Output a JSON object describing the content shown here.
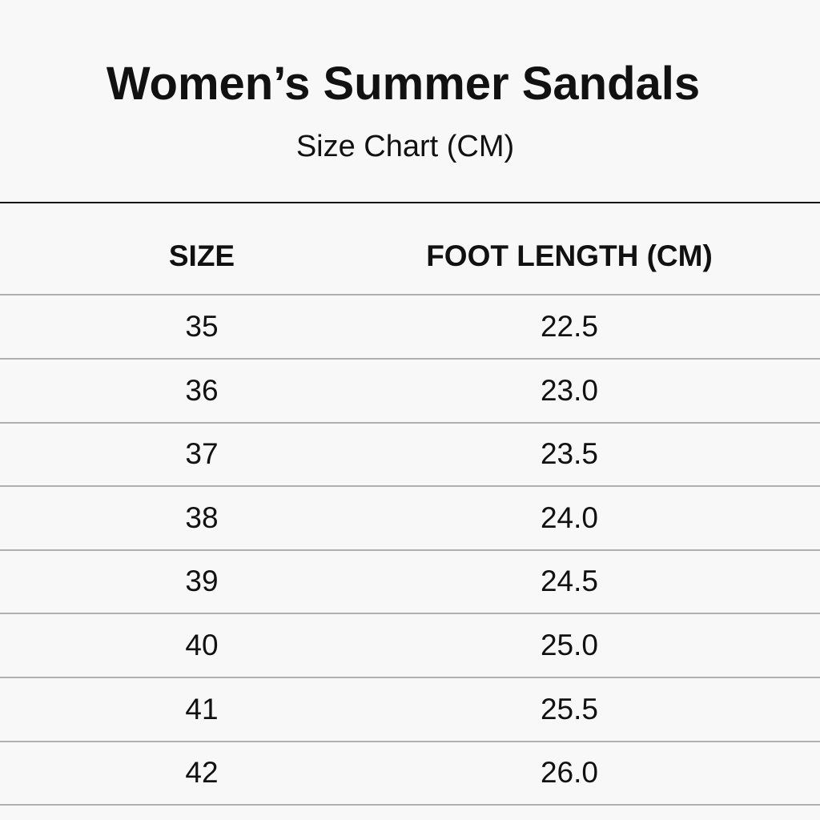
{
  "header": {
    "title": "Women’s Summer Sandals",
    "subtitle": "Size Chart (CM)"
  },
  "table": {
    "columns": [
      "SIZE",
      "FOOT LENGTH (CM)"
    ],
    "rows": [
      [
        "35",
        "22.5"
      ],
      [
        "36",
        "23.0"
      ],
      [
        "37",
        "23.5"
      ],
      [
        "38",
        "24.0"
      ],
      [
        "39",
        "24.5"
      ],
      [
        "40",
        "25.0"
      ],
      [
        "41",
        "25.5"
      ],
      [
        "42",
        "26.0"
      ]
    ]
  },
  "colors": {
    "background": "#f8f8f8",
    "text": "#111111",
    "divider": "#b0b0b0"
  }
}
